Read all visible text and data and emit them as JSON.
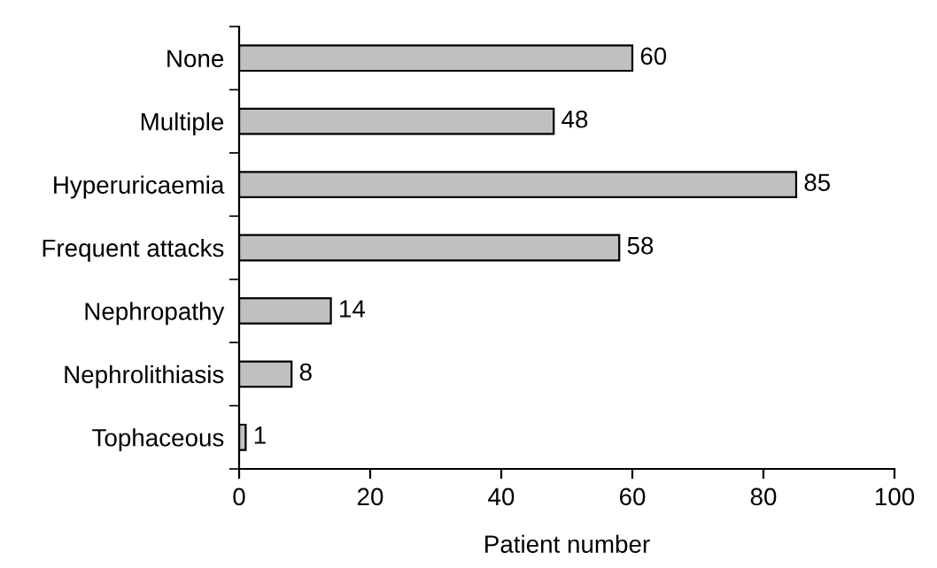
{
  "chart_data": {
    "type": "bar",
    "orientation": "horizontal",
    "categories": [
      "None",
      "Multiple",
      "Hyperuricaemia",
      "Frequent attacks",
      "Nephropathy",
      "Nephrolithiasis",
      "Tophaceous"
    ],
    "values": [
      60,
      48,
      85,
      58,
      14,
      8,
      1
    ],
    "color": "#c0c0c0",
    "xlabel": "Patient number",
    "xlim": [
      0,
      100
    ],
    "xticks": [
      0,
      20,
      40,
      60,
      80,
      100
    ],
    "data_labels": true,
    "grid": false,
    "legend": false
  }
}
